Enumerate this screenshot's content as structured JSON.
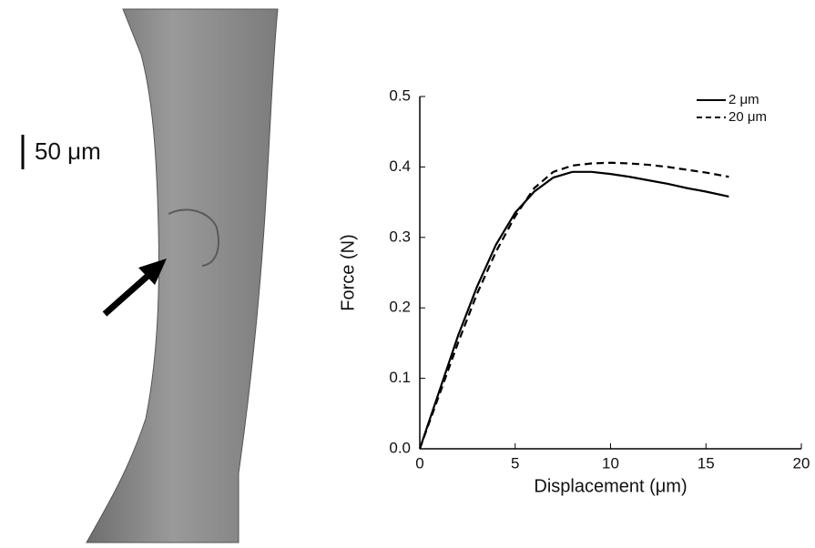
{
  "scale_bar": "50 μm",
  "chart_data": {
    "type": "line",
    "x_label": "Displacement (μm)",
    "y_label": "Force (N)",
    "x": [
      0,
      1,
      2,
      3,
      4,
      5,
      6,
      7,
      8,
      9,
      10,
      11,
      12,
      13,
      14,
      15,
      16.2
    ],
    "series": [
      {
        "name": "2 μm",
        "color": "#000000",
        "dash": false,
        "values": [
          0,
          0.08,
          0.16,
          0.23,
          0.29,
          0.335,
          0.365,
          0.385,
          0.393,
          0.393,
          0.39,
          0.386,
          0.381,
          0.376,
          0.37,
          0.365,
          0.358
        ]
      },
      {
        "name": "20 μm",
        "color": "#000000",
        "dash": true,
        "values": [
          0,
          0.075,
          0.15,
          0.22,
          0.28,
          0.33,
          0.37,
          0.393,
          0.402,
          0.405,
          0.406,
          0.405,
          0.403,
          0.4,
          0.396,
          0.392,
          0.386
        ]
      }
    ],
    "xlim": [
      0,
      20
    ],
    "xticks": [
      0,
      5,
      10,
      15,
      20
    ],
    "ylim": [
      0,
      0.5
    ],
    "yticks": [
      {
        "value": 0,
        "label": "0.0"
      },
      0.1,
      0.2,
      0.3,
      0.4,
      0.5
    ],
    "legend": "top-right"
  }
}
